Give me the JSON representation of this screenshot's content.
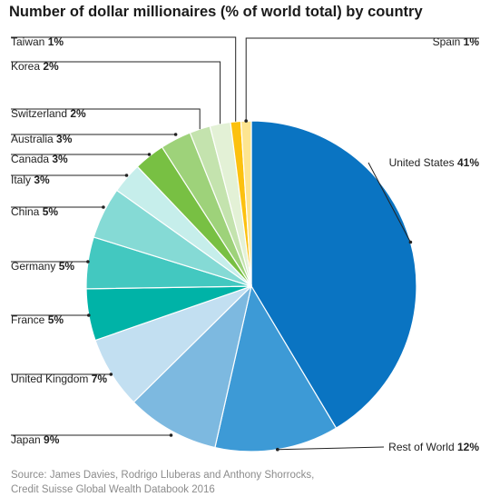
{
  "chart_data": {
    "type": "pie",
    "title": "Number of dollar millionaires (% of world total) by country",
    "slices": [
      {
        "label": "United States",
        "value": 41,
        "value_label": "41%",
        "color": "#0a74c2"
      },
      {
        "label": "Rest of World",
        "value": 12,
        "value_label": "12%",
        "color": "#3d9ad6"
      },
      {
        "label": "Japan",
        "value": 9,
        "value_label": "9%",
        "color": "#7db9e0"
      },
      {
        "label": "United Kingdom",
        "value": 7,
        "value_label": "7%",
        "color": "#c2dff1"
      },
      {
        "label": "France",
        "value": 5,
        "value_label": "5%",
        "color": "#00b3a7"
      },
      {
        "label": "Germany",
        "value": 5,
        "value_label": "5%",
        "color": "#43c8c0"
      },
      {
        "label": "China",
        "value": 5,
        "value_label": "5%",
        "color": "#85dad5"
      },
      {
        "label": "Italy",
        "value": 3,
        "value_label": "3%",
        "color": "#c6eeeb"
      },
      {
        "label": "Canada",
        "value": 3,
        "value_label": "3%",
        "color": "#78c043"
      },
      {
        "label": "Australia",
        "value": 3,
        "value_label": "3%",
        "color": "#9ed27a"
      },
      {
        "label": "Switzerland",
        "value": 2,
        "value_label": "2%",
        "color": "#c4e3ae"
      },
      {
        "label": "Korea",
        "value": 2,
        "value_label": "2%",
        "color": "#e3f1d6"
      },
      {
        "label": "Taiwan",
        "value": 1,
        "value_label": "1%",
        "color": "#fcc10f"
      },
      {
        "label": "Spain",
        "value": 1,
        "value_label": "1%",
        "color": "#fde590"
      }
    ]
  },
  "source": {
    "line1": "Source: James Davies, Rodrigo Lluberas and Anthony Shorrocks,",
    "line2": "Credit Suisse Global Wealth Databook 2016"
  }
}
